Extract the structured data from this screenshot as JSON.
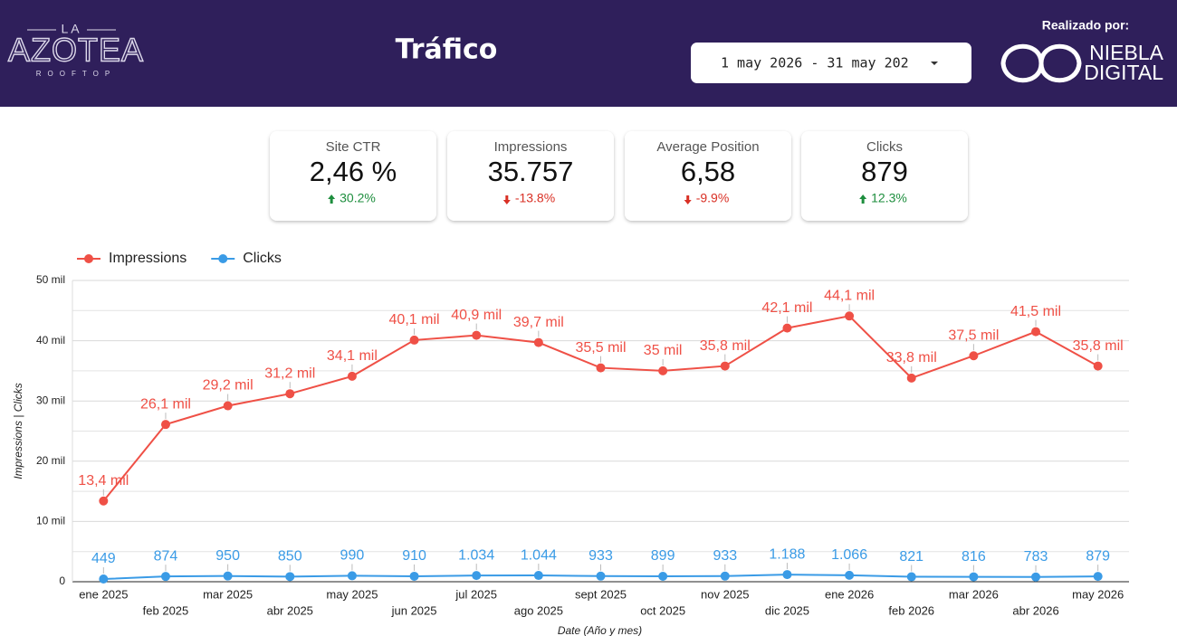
{
  "header": {
    "logo": {
      "top": "LA",
      "main": "AZOTEA",
      "sub": "ROOFTOP"
    },
    "title": "Tráfico",
    "date_range": "1 may 2026 - 31 may 202",
    "credit": "Realizado por:",
    "brand": {
      "line1": "NIEBLA",
      "line2": "DIGITAL"
    }
  },
  "kpis": [
    {
      "label": "Site CTR",
      "value": "2,46 %",
      "change": "30.2%",
      "direction": "up"
    },
    {
      "label": "Impressions",
      "value": "35.757",
      "change": "-13.8%",
      "direction": "down"
    },
    {
      "label": "Average Position",
      "value": "6,58",
      "change": "-9.9%",
      "direction": "down"
    },
    {
      "label": "Clicks",
      "value": "879",
      "change": "12.3%",
      "direction": "up"
    }
  ],
  "chart_data": {
    "type": "line",
    "x_label": "Date (Año y mes)",
    "y_label": "Impressions | Clicks",
    "categories": [
      "ene 2025",
      "feb 2025",
      "mar 2025",
      "abr 2025",
      "may 2025",
      "jun 2025",
      "jul 2025",
      "ago 2025",
      "sept 2025",
      "oct 2025",
      "nov 2025",
      "dic 2025",
      "ene 2026",
      "feb 2026",
      "mar 2026",
      "abr 2026",
      "may 2026"
    ],
    "series": [
      {
        "name": "Impressions",
        "color": "#ef5046",
        "values": [
          13400,
          26100,
          29200,
          31200,
          34100,
          40100,
          40900,
          39700,
          35500,
          35000,
          35800,
          42100,
          44100,
          33800,
          37500,
          41500,
          35800
        ],
        "value_labels": [
          "13,4 mil",
          "26,1 mil",
          "29,2 mil",
          "31,2 mil",
          "34,1 mil",
          "40,1 mil",
          "40,9 mil",
          "39,7 mil",
          "35,5 mil",
          "35 mil",
          "35,8 mil",
          "42,1 mil",
          "44,1 mil",
          "33,8 mil",
          "37,5 mil",
          "41,5 mil",
          "35,8 mil"
        ]
      },
      {
        "name": "Clicks",
        "color": "#3a9be6",
        "values": [
          449,
          874,
          950,
          850,
          990,
          910,
          1034,
          1044,
          933,
          899,
          933,
          1188,
          1066,
          821,
          816,
          783,
          879
        ],
        "value_labels": [
          "449",
          "874",
          "950",
          "850",
          "990",
          "910",
          "1.034",
          "1.044",
          "933",
          "899",
          "933",
          "1.188",
          "1.066",
          "821",
          "816",
          "783",
          "879"
        ]
      }
    ],
    "ylim": [
      0,
      50000
    ],
    "yticks": [
      0,
      {
        "value": 10000,
        "label": "10 mil"
      },
      {
        "value": 20000,
        "label": "20 mil"
      },
      {
        "value": 30000,
        "label": "30 mil"
      },
      {
        "value": 40000,
        "label": "40 mil"
      },
      {
        "value": 50000,
        "label": "50 mil"
      }
    ],
    "minor_yticks": [
      5000,
      15000,
      25000,
      35000,
      45000
    ],
    "grid": true,
    "legend": "top-left"
  }
}
